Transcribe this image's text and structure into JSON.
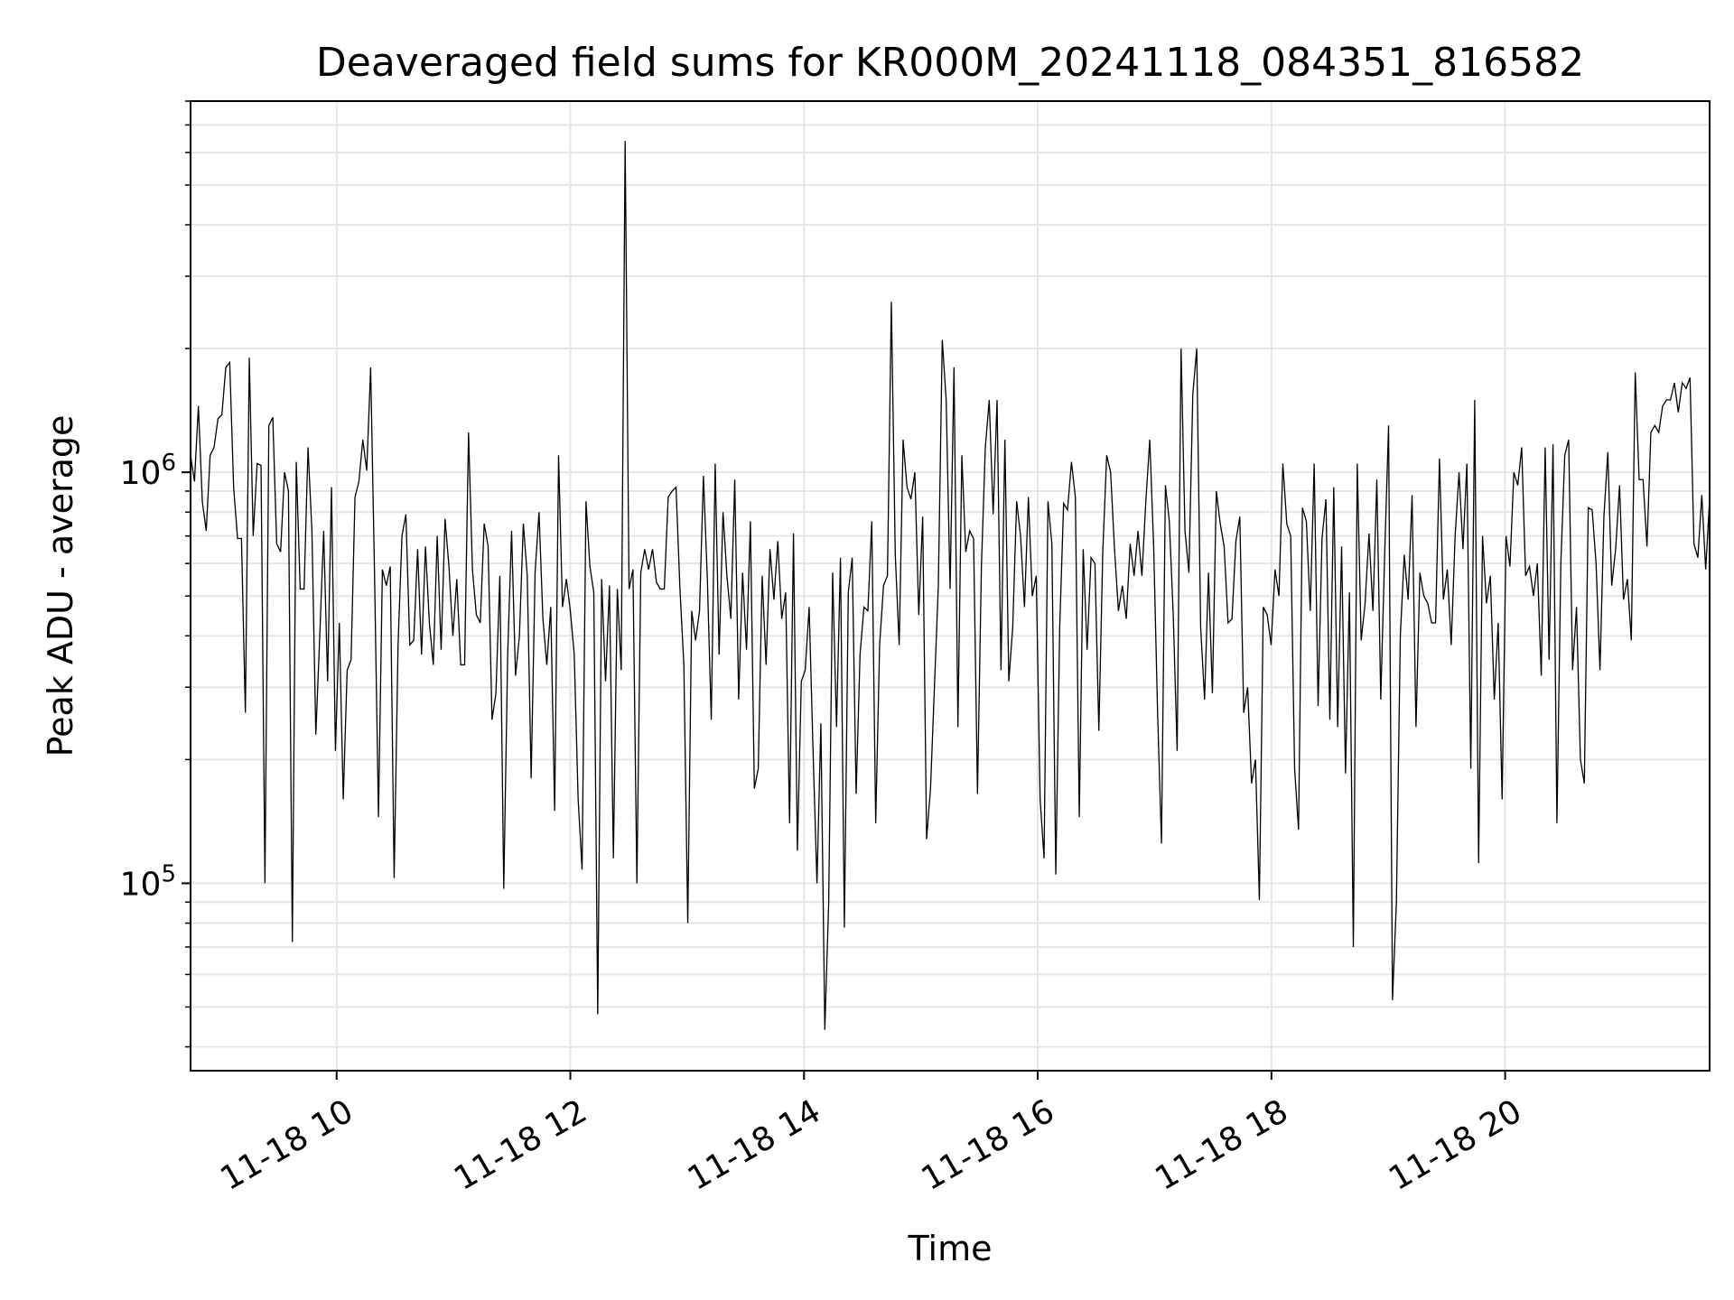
{
  "chart_data": {
    "type": "line",
    "title": "Deaveraged field sums for KR000M_20241118_084351_816582",
    "xlabel": "Time",
    "ylabel": "Peak ADU - average",
    "y_scale": "log",
    "grid": true,
    "xlim": [
      "2024-11-18 08:45",
      "2024-11-18 21:45"
    ],
    "ylim": [
      35000,
      8000000
    ],
    "x_ticks": [
      {
        "t": "2024-11-18 10:00",
        "label": "11-18 10"
      },
      {
        "t": "2024-11-18 12:00",
        "label": "11-18 12"
      },
      {
        "t": "2024-11-18 14:00",
        "label": "11-18 14"
      },
      {
        "t": "2024-11-18 16:00",
        "label": "11-18 16"
      },
      {
        "t": "2024-11-18 18:00",
        "label": "11-18 18"
      },
      {
        "t": "2024-11-18 20:00",
        "label": "11-18 20"
      }
    ],
    "y_ticks": [
      {
        "value": 100000,
        "base": "10",
        "exp": "5"
      },
      {
        "value": 1000000,
        "base": "10",
        "exp": "6"
      }
    ],
    "line_color": "#000000",
    "series": [
      {
        "start": "2024-11-18 08:45",
        "end": "2024-11-18 21:45",
        "values": [
          1100000,
          950000,
          1450000,
          850000,
          720000,
          1100000,
          1150000,
          1350000,
          1380000,
          1800000,
          1850000,
          920000,
          690000,
          690000,
          260000,
          1900000,
          700000,
          1050000,
          1040000,
          100000,
          1300000,
          1360000,
          670000,
          640000,
          1000000,
          900000,
          72000,
          1060000,
          520000,
          520000,
          1150000,
          720000,
          230000,
          400000,
          720000,
          310000,
          920000,
          210000,
          430000,
          160000,
          330000,
          350000,
          870000,
          950000,
          1200000,
          1010000,
          1800000,
          560000,
          145000,
          580000,
          530000,
          590000,
          103000,
          380000,
          700000,
          790000,
          380000,
          390000,
          650000,
          360000,
          660000,
          430000,
          340000,
          700000,
          370000,
          770000,
          590000,
          400000,
          550000,
          340000,
          340000,
          1250000,
          580000,
          450000,
          430000,
          750000,
          660000,
          250000,
          290000,
          560000,
          97000,
          360000,
          720000,
          320000,
          400000,
          750000,
          560000,
          180000,
          570000,
          800000,
          440000,
          340000,
          470000,
          150000,
          1100000,
          470000,
          550000,
          460000,
          360000,
          160000,
          108000,
          850000,
          590000,
          510000,
          48000,
          550000,
          310000,
          530000,
          115000,
          520000,
          330000,
          6400000,
          520000,
          580000,
          100000,
          570000,
          650000,
          580000,
          650000,
          540000,
          520000,
          520000,
          870000,
          900000,
          920000,
          520000,
          340000,
          80000,
          460000,
          390000,
          460000,
          980000,
          550000,
          250000,
          1050000,
          360000,
          800000,
          560000,
          440000,
          960000,
          280000,
          570000,
          370000,
          760000,
          170000,
          190000,
          560000,
          340000,
          650000,
          490000,
          680000,
          440000,
          510000,
          140000,
          710000,
          120000,
          310000,
          330000,
          470000,
          210000,
          100000,
          245000,
          44000,
          90000,
          570000,
          240000,
          620000,
          78000,
          510000,
          620000,
          165000,
          360000,
          470000,
          460000,
          760000,
          140000,
          380000,
          530000,
          560000,
          2600000,
          630000,
          380000,
          1200000,
          920000,
          860000,
          1000000,
          450000,
          780000,
          128000,
          170000,
          300000,
          530000,
          2100000,
          1500000,
          520000,
          1800000,
          240000,
          1100000,
          640000,
          720000,
          690000,
          165000,
          590000,
          1150000,
          1500000,
          790000,
          1500000,
          330000,
          1200000,
          310000,
          420000,
          850000,
          700000,
          470000,
          870000,
          500000,
          560000,
          160000,
          115000,
          850000,
          670000,
          105000,
          420000,
          840000,
          810000,
          1060000,
          870000,
          145000,
          650000,
          370000,
          620000,
          600000,
          235000,
          640000,
          1100000,
          1000000,
          650000,
          460000,
          530000,
          440000,
          670000,
          560000,
          720000,
          560000,
          850000,
          1200000,
          660000,
          260000,
          125000,
          930000,
          760000,
          450000,
          210000,
          2000000,
          720000,
          570000,
          1550000,
          2000000,
          420000,
          280000,
          570000,
          290000,
          900000,
          750000,
          660000,
          430000,
          440000,
          680000,
          780000,
          260000,
          300000,
          175000,
          200000,
          91000,
          470000,
          450000,
          380000,
          580000,
          500000,
          1050000,
          750000,
          700000,
          190000,
          135000,
          820000,
          760000,
          460000,
          1050000,
          270000,
          690000,
          860000,
          250000,
          920000,
          240000,
          660000,
          185000,
          510000,
          70000,
          1050000,
          390000,
          480000,
          710000,
          460000,
          960000,
          280000,
          630000,
          1300000,
          52000,
          90000,
          400000,
          630000,
          490000,
          880000,
          240000,
          570000,
          500000,
          480000,
          430000,
          430000,
          1080000,
          490000,
          580000,
          380000,
          700000,
          1000000,
          650000,
          1050000,
          190000,
          1500000,
          112000,
          700000,
          480000,
          560000,
          280000,
          430000,
          160000,
          700000,
          590000,
          1000000,
          930000,
          1150000,
          560000,
          590000,
          500000,
          600000,
          320000,
          1150000,
          350000,
          1170000,
          140000,
          600000,
          1100000,
          1200000,
          330000,
          470000,
          200000,
          175000,
          820000,
          810000,
          600000,
          330000,
          780000,
          1120000,
          530000,
          650000,
          930000,
          490000,
          550000,
          390000,
          1750000,
          960000,
          960000,
          660000,
          1250000,
          1300000,
          1250000,
          1450000,
          1500000,
          1500000,
          1650000,
          1400000,
          1650000,
          1600000,
          1700000,
          670000,
          620000,
          880000,
          580000,
          860000
        ]
      }
    ]
  }
}
